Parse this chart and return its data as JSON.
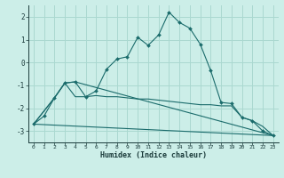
{
  "xlabel": "Humidex (Indice chaleur)",
  "bg_color": "#cceee8",
  "grid_color": "#aad8d0",
  "line_color": "#1a6b6b",
  "xlim": [
    -0.5,
    23.5
  ],
  "ylim": [
    -3.5,
    2.5
  ],
  "xticks": [
    0,
    1,
    2,
    3,
    4,
    5,
    6,
    7,
    8,
    9,
    10,
    11,
    12,
    13,
    14,
    15,
    16,
    17,
    18,
    19,
    20,
    21,
    22,
    23
  ],
  "yticks": [
    -3,
    -2,
    -1,
    0,
    1,
    2
  ],
  "line1_x": [
    0,
    1,
    2,
    3,
    4,
    5,
    6,
    7,
    8,
    9,
    10,
    11,
    12,
    13,
    14,
    15,
    16,
    17,
    18,
    19,
    20,
    21,
    22,
    23
  ],
  "line1_y": [
    -2.7,
    -2.35,
    -1.55,
    -0.9,
    -0.85,
    -1.5,
    -1.25,
    -0.3,
    0.15,
    0.25,
    1.1,
    0.75,
    1.2,
    2.2,
    1.75,
    1.5,
    0.8,
    -0.35,
    -1.75,
    -1.8,
    -2.4,
    -2.55,
    -3.0,
    -3.2
  ],
  "line2_x": [
    0,
    2,
    3,
    4,
    23
  ],
  "line2_y": [
    -2.7,
    -1.55,
    -0.9,
    -0.85,
    -3.2
  ],
  "line3_x": [
    0,
    2,
    3,
    4,
    5,
    6,
    7,
    8,
    9,
    10,
    11,
    12,
    13,
    14,
    15,
    16,
    17,
    18,
    19,
    20,
    21,
    22,
    23
  ],
  "line3_y": [
    -2.7,
    -1.55,
    -0.9,
    -1.5,
    -1.5,
    -1.45,
    -1.5,
    -1.5,
    -1.55,
    -1.6,
    -1.6,
    -1.65,
    -1.7,
    -1.75,
    -1.8,
    -1.85,
    -1.85,
    -1.9,
    -1.9,
    -2.4,
    -2.55,
    -2.8,
    -3.2
  ],
  "line4_x": [
    0,
    23
  ],
  "line4_y": [
    -2.7,
    -3.2
  ]
}
